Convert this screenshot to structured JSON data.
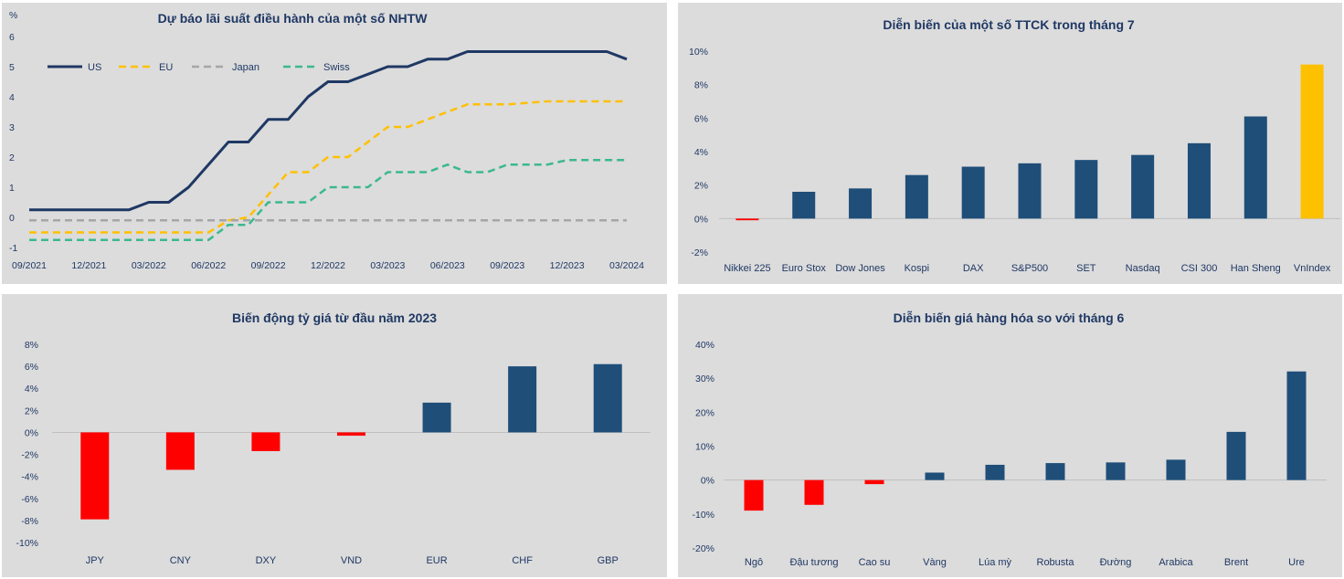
{
  "chart_data": [
    {
      "type": "line",
      "title": "Dự báo lãi suất điều hành của một số NHTW",
      "ylabel": "%",
      "ylim": [
        -1,
        6
      ],
      "yticks": [
        "-1",
        "0",
        "1",
        "2",
        "3",
        "4",
        "5",
        "6"
      ],
      "xticks": [
        "09/2021",
        "12/2021",
        "03/2022",
        "06/2022",
        "09/2022",
        "12/2022",
        "03/2023",
        "06/2023",
        "09/2023",
        "12/2023",
        "03/2024"
      ],
      "legend_position": "top-left",
      "colors": {
        "US": "#1f3864",
        "EU": "#ffc000",
        "Japan": "#a6a6a6",
        "Swiss": "#3cb88f"
      },
      "series": [
        {
          "name": "US",
          "points": [
            [
              0,
              0.25
            ],
            [
              5,
              0.25
            ],
            [
              6,
              0.5
            ],
            [
              7,
              0.5
            ],
            [
              8,
              1.0
            ],
            [
              9,
              1.75
            ],
            [
              10,
              2.5
            ],
            [
              11,
              2.5
            ],
            [
              12,
              3.25
            ],
            [
              13,
              3.25
            ],
            [
              14,
              4.0
            ],
            [
              15,
              4.5
            ],
            [
              16,
              4.5
            ],
            [
              17,
              4.75
            ],
            [
              18,
              5.0
            ],
            [
              19,
              5.0
            ],
            [
              20,
              5.25
            ],
            [
              21,
              5.25
            ],
            [
              22,
              5.5
            ],
            [
              29,
              5.5
            ],
            [
              30,
              5.25
            ]
          ]
        },
        {
          "name": "EU",
          "points": [
            [
              0,
              -0.5
            ],
            [
              9,
              -0.5
            ],
            [
              10,
              -0.1
            ],
            [
              11,
              0.0
            ],
            [
              12,
              0.75
            ],
            [
              13,
              1.5
            ],
            [
              14,
              1.5
            ],
            [
              15,
              2.0
            ],
            [
              16,
              2.0
            ],
            [
              17,
              2.5
            ],
            [
              18,
              3.0
            ],
            [
              19,
              3.0
            ],
            [
              20,
              3.25
            ],
            [
              21,
              3.5
            ],
            [
              22,
              3.75
            ],
            [
              24,
              3.75
            ],
            [
              26,
              3.85
            ],
            [
              30,
              3.85
            ]
          ]
        },
        {
          "name": "Japan",
          "points": [
            [
              0,
              -0.1
            ],
            [
              30,
              -0.1
            ]
          ]
        },
        {
          "name": "Swiss",
          "points": [
            [
              0,
              -0.75
            ],
            [
              9,
              -0.75
            ],
            [
              10,
              -0.25
            ],
            [
              11,
              -0.25
            ],
            [
              12,
              0.5
            ],
            [
              13,
              0.5
            ],
            [
              14,
              0.5
            ],
            [
              15,
              1.0
            ],
            [
              16,
              1.0
            ],
            [
              17,
              1.0
            ],
            [
              18,
              1.5
            ],
            [
              19,
              1.5
            ],
            [
              20,
              1.5
            ],
            [
              21,
              1.75
            ],
            [
              22,
              1.5
            ],
            [
              23,
              1.5
            ],
            [
              24,
              1.75
            ],
            [
              25,
              1.75
            ],
            [
              26,
              1.75
            ],
            [
              27,
              1.9
            ],
            [
              30,
              1.9
            ]
          ]
        }
      ]
    },
    {
      "type": "bar",
      "title": "Diễn biến của một số TTCK trong tháng 7",
      "ylim": [
        -2,
        10
      ],
      "yticks": [
        "-2%",
        "0%",
        "2%",
        "4%",
        "6%",
        "8%",
        "10%"
      ],
      "categories": [
        "Nikkei 225",
        "Euro Stox",
        "Dow Jones",
        "Kospi",
        "DAX",
        "S&P500",
        "SET",
        "Nasdaq",
        "CSI 300",
        "Han Sheng",
        "VnIndex"
      ],
      "values": [
        -0.1,
        1.6,
        1.8,
        2.6,
        3.1,
        3.3,
        3.5,
        3.8,
        4.5,
        6.1,
        9.2
      ],
      "colors": [
        "#ff0000",
        "#1f4e79",
        "#1f4e79",
        "#1f4e79",
        "#1f4e79",
        "#1f4e79",
        "#1f4e79",
        "#1f4e79",
        "#1f4e79",
        "#1f4e79",
        "#ffc000"
      ]
    },
    {
      "type": "bar",
      "title": "Biến động tỷ giá từ đầu năm 2023",
      "ylim": [
        -10,
        8
      ],
      "yticks": [
        "-10%",
        "-8%",
        "-6%",
        "-4%",
        "-2%",
        "0%",
        "2%",
        "4%",
        "6%",
        "8%"
      ],
      "categories": [
        "JPY",
        "CNY",
        "DXY",
        "VND",
        "EUR",
        "CHF",
        "GBP"
      ],
      "values": [
        -7.9,
        -3.4,
        -1.7,
        -0.3,
        2.7,
        6.0,
        6.2
      ],
      "colors": [
        "#ff0000",
        "#ff0000",
        "#ff0000",
        "#ff0000",
        "#1f4e79",
        "#1f4e79",
        "#1f4e79"
      ]
    },
    {
      "type": "bar",
      "title": "Diễn biến giá hàng hóa so với tháng 6",
      "ylim": [
        -20,
        40
      ],
      "yticks": [
        "-20%",
        "-10%",
        "0%",
        "10%",
        "20%",
        "30%",
        "40%"
      ],
      "categories": [
        "Ngô",
        "Đậu tương",
        "Cao su",
        "Vàng",
        "Lúa mỳ",
        "Robusta",
        "Đường",
        "Arabica",
        "Brent",
        "Ure"
      ],
      "values": [
        -9.0,
        -7.3,
        -1.2,
        2.2,
        4.5,
        5.0,
        5.2,
        6.0,
        14.2,
        32.0
      ],
      "colors": [
        "#ff0000",
        "#ff0000",
        "#ff0000",
        "#1f4e79",
        "#1f4e79",
        "#1f4e79",
        "#1f4e79",
        "#1f4e79",
        "#1f4e79",
        "#1f4e79"
      ]
    }
  ]
}
